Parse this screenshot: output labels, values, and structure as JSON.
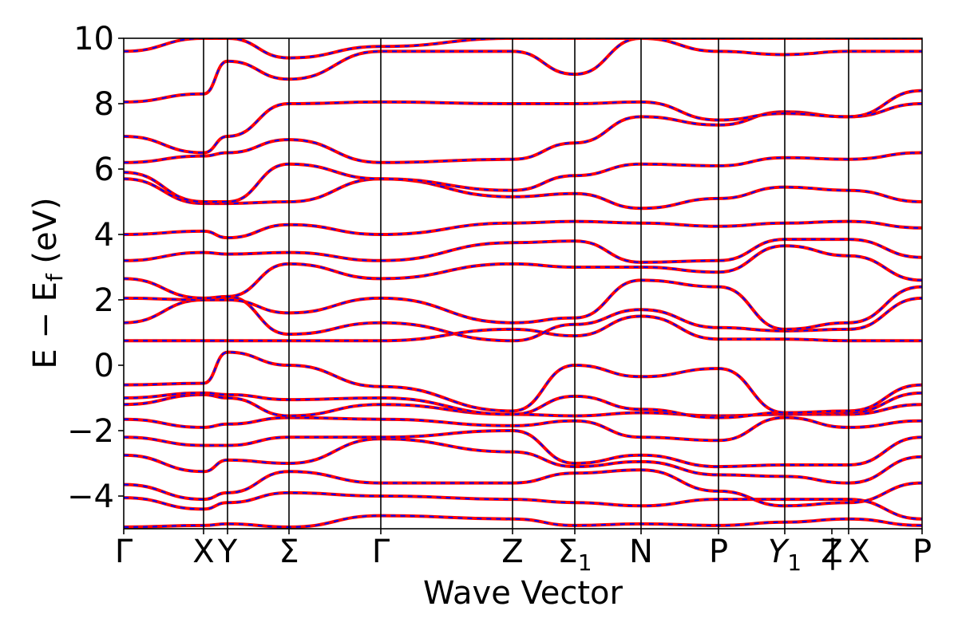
{
  "chart_data": {
    "type": "line",
    "title": "",
    "xlabel": "Wave Vector",
    "ylabel": "E − E",
    "ylabel_sub": "f",
    "ylabel_unit": " (eV)",
    "ylim": [
      -5,
      10
    ],
    "yticks": [
      {
        "value": -4,
        "label": "−4"
      },
      {
        "value": -2,
        "label": "−2"
      },
      {
        "value": 0,
        "label": "0"
      },
      {
        "value": 2,
        "label": "2"
      },
      {
        "value": 4,
        "label": "4"
      },
      {
        "value": 6,
        "label": "6"
      },
      {
        "value": 8,
        "label": "8"
      },
      {
        "value": 10,
        "label": "10"
      }
    ],
    "kpath_positions": [
      0,
      1.0,
      1.3,
      2.07,
      3.22,
      4.87,
      5.65,
      6.48,
      7.45,
      8.28,
      9.08,
      10.0
    ],
    "xticks": [
      {
        "pos": 0,
        "label": "Γ"
      },
      {
        "pos": 1.0,
        "label": "X"
      },
      {
        "pos": 1.3,
        "label": "Y"
      },
      {
        "pos": 2.07,
        "label": "Σ"
      },
      {
        "pos": 3.22,
        "label": "Γ"
      },
      {
        "pos": 4.87,
        "label": "Z"
      },
      {
        "pos": 5.65,
        "label": "Σ",
        "sub": "1"
      },
      {
        "pos": 6.48,
        "label": "N"
      },
      {
        "pos": 7.45,
        "label": "P"
      },
      {
        "pos": 8.28,
        "label": "Y",
        "sub": "1"
      },
      {
        "pos": 8.87,
        "label": "Z"
      },
      {
        "pos": 9.08,
        "label": "| X"
      },
      {
        "pos": 10.0,
        "label": "P"
      }
    ],
    "xlim": [
      0,
      10
    ],
    "grid": false,
    "series_colors": [
      "#ff0000",
      "#0000ff"
    ],
    "series_styles": [
      "solid",
      "dashed"
    ],
    "bands": [
      [
        -4.95,
        -4.9,
        -4.85,
        -4.95,
        -4.6,
        -4.7,
        -4.9,
        -4.85,
        -4.9,
        -4.8,
        -4.7,
        -4.9
      ],
      [
        -4.05,
        -4.4,
        -4.2,
        -3.9,
        -4.0,
        -4.1,
        -4.2,
        -4.3,
        -4.1,
        -4.1,
        -4.1,
        -4.7
      ],
      [
        -3.65,
        -4.1,
        -3.9,
        -3.25,
        -3.6,
        -3.6,
        -3.3,
        -3.2,
        -3.85,
        -4.3,
        -4.2,
        -3.6
      ],
      [
        -2.75,
        -3.25,
        -2.9,
        -3.0,
        -2.25,
        -2.65,
        -3.1,
        -2.95,
        -3.35,
        -3.4,
        -3.6,
        -2.8
      ],
      [
        -2.2,
        -2.45,
        -2.45,
        -2.2,
        -2.2,
        -2.0,
        -3.0,
        -2.75,
        -3.1,
        -3.05,
        -3.05,
        -2.2
      ],
      [
        -1.65,
        -1.9,
        -1.8,
        -1.6,
        -1.65,
        -1.85,
        -1.7,
        -2.2,
        -2.3,
        -1.6,
        -1.9,
        -1.7
      ],
      [
        -1.2,
        -0.9,
        -1.0,
        -1.55,
        -1.2,
        -1.5,
        -1.55,
        -1.45,
        -1.55,
        -1.5,
        -1.5,
        -1.2
      ],
      [
        -1.0,
        -0.85,
        -0.9,
        -1.05,
        -1.0,
        -1.5,
        -0.95,
        -1.35,
        -1.6,
        -1.45,
        -1.45,
        -0.85
      ],
      [
        -0.6,
        -0.55,
        0.4,
        0.0,
        -0.65,
        -1.4,
        0.0,
        -0.35,
        -0.1,
        -1.45,
        -1.4,
        -0.6
      ],
      [
        0.75,
        0.75,
        0.75,
        0.75,
        0.75,
        1.1,
        0.9,
        1.5,
        0.8,
        0.8,
        0.75,
        0.75
      ],
      [
        1.3,
        2.0,
        2.1,
        0.95,
        1.3,
        0.75,
        1.25,
        1.7,
        1.15,
        1.05,
        1.1,
        2.05
      ],
      [
        2.05,
        2.0,
        2.0,
        1.6,
        2.05,
        1.3,
        1.45,
        2.6,
        2.4,
        1.1,
        1.3,
        2.4
      ],
      [
        2.65,
        2.05,
        2.1,
        3.1,
        2.65,
        3.1,
        3.0,
        3.0,
        2.85,
        3.65,
        3.35,
        2.6
      ],
      [
        3.2,
        3.45,
        3.4,
        3.45,
        3.2,
        3.75,
        3.8,
        3.15,
        3.2,
        3.85,
        3.85,
        3.3
      ],
      [
        4.0,
        4.1,
        3.9,
        4.3,
        4.0,
        4.35,
        4.4,
        4.35,
        4.25,
        4.35,
        4.4,
        4.2
      ],
      [
        5.7,
        4.95,
        4.95,
        5.0,
        5.7,
        5.15,
        5.25,
        4.8,
        5.1,
        5.45,
        5.35,
        5.0
      ],
      [
        5.9,
        5.0,
        5.0,
        6.15,
        5.7,
        5.35,
        5.8,
        6.15,
        6.1,
        6.35,
        6.3,
        6.5
      ],
      [
        6.2,
        6.4,
        6.5,
        6.9,
        6.2,
        6.3,
        6.8,
        7.6,
        7.35,
        7.75,
        7.6,
        8.0
      ],
      [
        7.0,
        6.5,
        7.0,
        8.0,
        8.05,
        8.0,
        8.0,
        8.05,
        7.5,
        7.7,
        7.6,
        8.4
      ],
      [
        8.05,
        8.3,
        9.3,
        8.75,
        9.6,
        9.6,
        8.9,
        10.0,
        9.6,
        9.5,
        9.6,
        9.6
      ],
      [
        9.6,
        10.0,
        10.0,
        9.4,
        9.75,
        10.0,
        10.0,
        10.0,
        10.0,
        10.0,
        10.0,
        10.0
      ]
    ]
  }
}
